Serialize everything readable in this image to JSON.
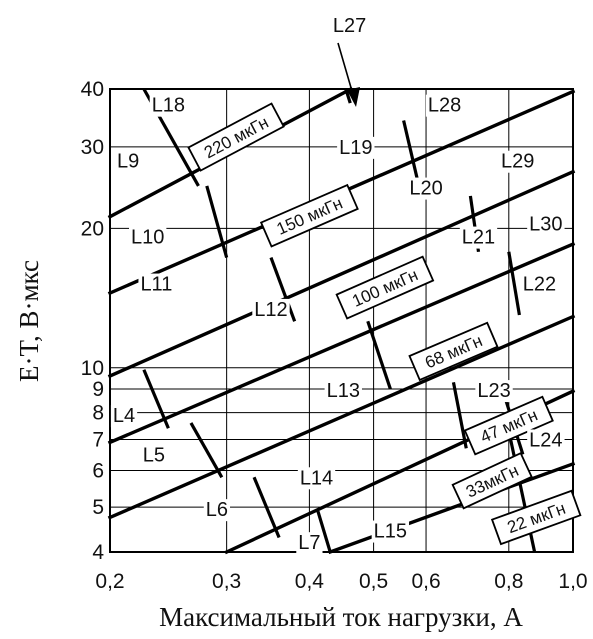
{
  "chart_data": {
    "type": "line",
    "xscale": "log",
    "yscale": "log",
    "xlim": [
      0.2,
      1.0
    ],
    "ylim": [
      4,
      40
    ],
    "xlabel": "Максимальный ток нагрузки, А",
    "ylabel": "E·T, В·мкс",
    "x_ticks": [
      {
        "value": 0.2,
        "label": "0,2"
      },
      {
        "value": 0.3,
        "label": "0,3"
      },
      {
        "value": 0.4,
        "label": "0,4"
      },
      {
        "value": 0.5,
        "label": "0,5"
      },
      {
        "value": 0.6,
        "label": "0,6"
      },
      {
        "value": 0.8,
        "label": "0,8"
      },
      {
        "value": 1.0,
        "label": "1,0"
      }
    ],
    "y_ticks": [
      {
        "value": 4,
        "label": "4"
      },
      {
        "value": 5,
        "label": "5"
      },
      {
        "value": 6,
        "label": "6"
      },
      {
        "value": 7,
        "label": "7"
      },
      {
        "value": 8,
        "label": "8"
      },
      {
        "value": 9,
        "label": "9"
      },
      {
        "value": 10,
        "label": "10"
      },
      {
        "value": 20,
        "label": "20"
      },
      {
        "value": 30,
        "label": "30"
      },
      {
        "value": 40,
        "label": "40"
      }
    ],
    "grid": true,
    "inductance_lines": [
      {
        "name": "220 мкГн",
        "points": [
          [
            0.2,
            21.2
          ],
          [
            0.462,
            40
          ]
        ]
      },
      {
        "name": "150 мкГн",
        "points": [
          [
            0.2,
            14.5
          ],
          [
            1.0,
            39.5
          ]
        ]
      },
      {
        "name": "100 мкГн",
        "points": [
          [
            0.2,
            9.6
          ],
          [
            1.0,
            26.5
          ]
        ]
      },
      {
        "name": "68 мкГн",
        "points": [
          [
            0.2,
            6.9
          ],
          [
            1.0,
            18.5
          ]
        ]
      },
      {
        "name": "47 мкГн",
        "points": [
          [
            0.2,
            4.75
          ],
          [
            1.0,
            12.9
          ]
        ]
      },
      {
        "name": "33 мкГн",
        "points": [
          [
            0.3,
            4.0
          ],
          [
            1.0,
            8.9
          ]
        ]
      },
      {
        "name": "22 мкГн",
        "points": [
          [
            0.43,
            4.0
          ],
          [
            1.0,
            6.2
          ]
        ]
      }
    ],
    "zone_boundaries": [
      [
        [
          0.225,
          40
        ],
        [
          0.272,
          24.7
        ]
      ],
      [
        [
          0.454,
          40
        ],
        [
          0.461,
          37.3
        ]
      ],
      [
        [
          0.28,
          24.7
        ],
        [
          0.3,
          17.3
        ]
      ],
      [
        [
          0.555,
          34.2
        ],
        [
          0.59,
          23.5
        ]
      ],
      [
        [
          0.35,
          17.3
        ],
        [
          0.38,
          12.6
        ]
      ],
      [
        [
          0.7,
          23.5
        ],
        [
          0.72,
          17.8
        ]
      ],
      [
        [
          0.49,
          12.6
        ],
        [
          0.53,
          9.0
        ]
      ],
      [
        [
          0.8,
          17.8
        ],
        [
          0.83,
          13.0
        ]
      ],
      [
        [
          0.225,
          9.9
        ],
        [
          0.245,
          7.4
        ]
      ],
      [
        [
          0.66,
          9.3
        ],
        [
          0.69,
          6.7
        ]
      ],
      [
        [
          0.265,
          7.6
        ],
        [
          0.295,
          5.8
        ]
      ],
      [
        [
          0.79,
          8.6
        ],
        [
          0.84,
          6.5
        ]
      ],
      [
        [
          0.33,
          5.8
        ],
        [
          0.36,
          4.3
        ]
      ],
      [
        [
          0.412,
          4.9
        ],
        [
          0.43,
          4.0
        ]
      ],
      [
        [
          0.8,
          7.3
        ],
        [
          0.875,
          4.0
        ]
      ]
    ],
    "inductance_labels": [
      "220 мкГн",
      "150 мкГн",
      "100 мкГн",
      "68 мкГн",
      "47 мкГн",
      "33мкГн",
      "22 мкГн"
    ],
    "zones": [
      {
        "label": "L27",
        "x": 0.46,
        "y": 55
      },
      {
        "label": "L18",
        "x": 0.245,
        "y": 37
      },
      {
        "label": "L28",
        "x": 0.64,
        "y": 37
      },
      {
        "label": "L19",
        "x": 0.47,
        "y": 30
      },
      {
        "label": "L9",
        "x": 0.213,
        "y": 28
      },
      {
        "label": "L29",
        "x": 0.825,
        "y": 28
      },
      {
        "label": "L20",
        "x": 0.6,
        "y": 24.5
      },
      {
        "label": "L10",
        "x": 0.228,
        "y": 19.2
      },
      {
        "label": "L30",
        "x": 0.91,
        "y": 20.5
      },
      {
        "label": "L21",
        "x": 0.72,
        "y": 19.2
      },
      {
        "label": "L11",
        "x": 0.235,
        "y": 15.2
      },
      {
        "label": "L22",
        "x": 0.89,
        "y": 15.2
      },
      {
        "label": "L12",
        "x": 0.35,
        "y": 13.4
      },
      {
        "label": "L13",
        "x": 0.45,
        "y": 8.95
      },
      {
        "label": "L23",
        "x": 0.76,
        "y": 8.95
      },
      {
        "label": "L4",
        "x": 0.21,
        "y": 7.9
      },
      {
        "label": "L24",
        "x": 0.91,
        "y": 7.0
      },
      {
        "label": "L5",
        "x": 0.233,
        "y": 6.5
      },
      {
        "label": "L14",
        "x": 0.41,
        "y": 5.8
      },
      {
        "label": "L6",
        "x": 0.29,
        "y": 4.95
      },
      {
        "label": "L15",
        "x": 0.53,
        "y": 4.45
      },
      {
        "label": "L7",
        "x": 0.4,
        "y": 4.2
      }
    ]
  }
}
